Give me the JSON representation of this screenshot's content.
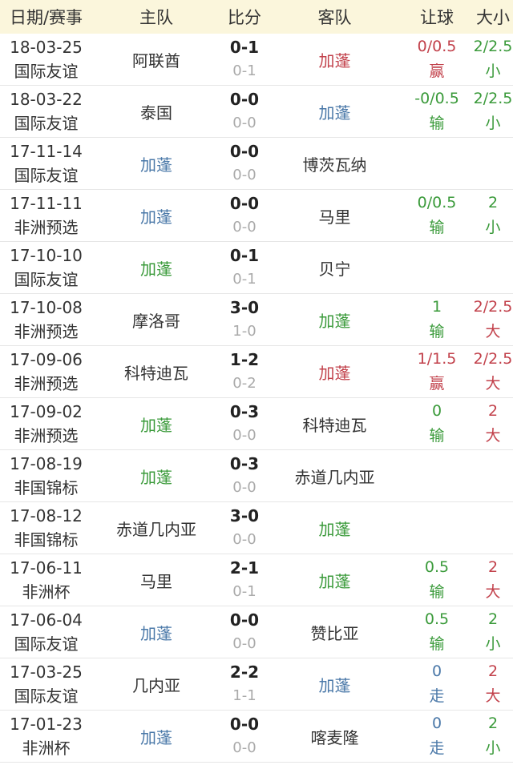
{
  "colors": {
    "red": "#c2414b",
    "green": "#3a9a3a",
    "blue": "#4a78a8",
    "header_bg": "#fbf6dc"
  },
  "header": {
    "date": "日期/赛事",
    "home": "主队",
    "score": "比分",
    "away": "客队",
    "handicap": "让球",
    "ou": "大小"
  },
  "rows": [
    {
      "date": "18-03-25",
      "comp": "国际友谊",
      "home": "阿联酋",
      "home_color": "",
      "ft": "0-1",
      "ht": "0-1",
      "away": "加蓬",
      "away_color": "red",
      "hc": "0/0.5",
      "hc_res": "赢",
      "hc_color": "red",
      "ou": "2/2.5",
      "ou_res": "小",
      "ou_color": "green"
    },
    {
      "date": "18-03-22",
      "comp": "国际友谊",
      "home": "泰国",
      "home_color": "",
      "ft": "0-0",
      "ht": "0-0",
      "away": "加蓬",
      "away_color": "blue",
      "hc": "-0/0.5",
      "hc_res": "输",
      "hc_color": "green",
      "ou": "2/2.5",
      "ou_res": "小",
      "ou_color": "green"
    },
    {
      "date": "17-11-14",
      "comp": "国际友谊",
      "home": "加蓬",
      "home_color": "blue",
      "ft": "0-0",
      "ht": "0-0",
      "away": "博茨瓦纳",
      "away_color": "",
      "hc": "",
      "hc_res": "",
      "hc_color": "",
      "ou": "",
      "ou_res": "",
      "ou_color": ""
    },
    {
      "date": "17-11-11",
      "comp": "非洲预选",
      "home": "加蓬",
      "home_color": "blue",
      "ft": "0-0",
      "ht": "0-0",
      "away": "马里",
      "away_color": "",
      "hc": "0/0.5",
      "hc_res": "输",
      "hc_color": "green",
      "ou": "2",
      "ou_res": "小",
      "ou_color": "green"
    },
    {
      "date": "17-10-10",
      "comp": "国际友谊",
      "home": "加蓬",
      "home_color": "green",
      "ft": "0-1",
      "ht": "0-1",
      "away": "贝宁",
      "away_color": "",
      "hc": "",
      "hc_res": "",
      "hc_color": "",
      "ou": "",
      "ou_res": "",
      "ou_color": ""
    },
    {
      "date": "17-10-08",
      "comp": "非洲预选",
      "home": "摩洛哥",
      "home_color": "",
      "ft": "3-0",
      "ht": "1-0",
      "away": "加蓬",
      "away_color": "green",
      "hc": "1",
      "hc_res": "输",
      "hc_color": "green",
      "ou": "2/2.5",
      "ou_res": "大",
      "ou_color": "red"
    },
    {
      "date": "17-09-06",
      "comp": "非洲预选",
      "home": "科特迪瓦",
      "home_color": "",
      "ft": "1-2",
      "ht": "0-2",
      "away": "加蓬",
      "away_color": "red",
      "hc": "1/1.5",
      "hc_res": "赢",
      "hc_color": "red",
      "ou": "2/2.5",
      "ou_res": "大",
      "ou_color": "red"
    },
    {
      "date": "17-09-02",
      "comp": "非洲预选",
      "home": "加蓬",
      "home_color": "green",
      "ft": "0-3",
      "ht": "0-0",
      "away": "科特迪瓦",
      "away_color": "",
      "hc": "0",
      "hc_res": "输",
      "hc_color": "green",
      "ou": "2",
      "ou_res": "大",
      "ou_color": "red"
    },
    {
      "date": "17-08-19",
      "comp": "非国锦标",
      "home": "加蓬",
      "home_color": "green",
      "ft": "0-3",
      "ht": "0-0",
      "away": "赤道几内亚",
      "away_color": "",
      "hc": "",
      "hc_res": "",
      "hc_color": "",
      "ou": "",
      "ou_res": "",
      "ou_color": ""
    },
    {
      "date": "17-08-12",
      "comp": "非国锦标",
      "home": "赤道几内亚",
      "home_color": "",
      "ft": "3-0",
      "ht": "0-0",
      "away": "加蓬",
      "away_color": "green",
      "hc": "",
      "hc_res": "",
      "hc_color": "",
      "ou": "",
      "ou_res": "",
      "ou_color": ""
    },
    {
      "date": "17-06-11",
      "comp": "非洲杯",
      "home": "马里",
      "home_color": "",
      "ft": "2-1",
      "ht": "0-1",
      "away": "加蓬",
      "away_color": "green",
      "hc": "0.5",
      "hc_res": "输",
      "hc_color": "green",
      "ou": "2",
      "ou_res": "大",
      "ou_color": "red"
    },
    {
      "date": "17-06-04",
      "comp": "国际友谊",
      "home": "加蓬",
      "home_color": "blue",
      "ft": "0-0",
      "ht": "0-0",
      "away": "赞比亚",
      "away_color": "",
      "hc": "0.5",
      "hc_res": "输",
      "hc_color": "green",
      "ou": "2",
      "ou_res": "小",
      "ou_color": "green"
    },
    {
      "date": "17-03-25",
      "comp": "国际友谊",
      "home": "几内亚",
      "home_color": "",
      "ft": "2-2",
      "ht": "1-1",
      "away": "加蓬",
      "away_color": "blue",
      "hc": "0",
      "hc_res": "走",
      "hc_color": "blue",
      "ou": "2",
      "ou_res": "大",
      "ou_color": "red"
    },
    {
      "date": "17-01-23",
      "comp": "非洲杯",
      "home": "加蓬",
      "home_color": "blue",
      "ft": "0-0",
      "ht": "0-0",
      "away": "喀麦隆",
      "away_color": "",
      "hc": "0",
      "hc_res": "走",
      "hc_color": "blue",
      "ou": "2",
      "ou_res": "小",
      "ou_color": "green"
    }
  ]
}
